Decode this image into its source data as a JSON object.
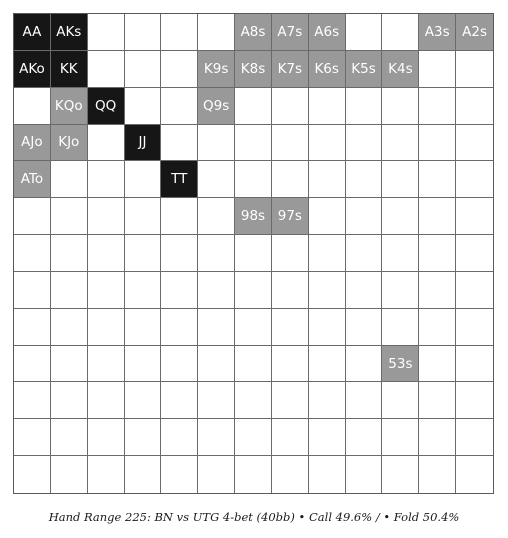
{
  "caption": "Hand Range 225: BN vs UTG 4-bet (40bb) • Call 49.6% / • Fold 50.4%",
  "colors": {
    "raise": "#161616",
    "call": "#999999",
    "fold": "#ffffff"
  },
  "grid": {
    "size": 13,
    "rows": [
      [
        {
          "t": "AA",
          "a": "raise"
        },
        {
          "t": "AKs",
          "a": "raise"
        },
        {
          "t": "",
          "a": "fold"
        },
        {
          "t": "",
          "a": "fold"
        },
        {
          "t": "",
          "a": "fold"
        },
        {
          "t": "",
          "a": "fold"
        },
        {
          "t": "A8s",
          "a": "call"
        },
        {
          "t": "A7s",
          "a": "call"
        },
        {
          "t": "A6s",
          "a": "call"
        },
        {
          "t": "",
          "a": "fold"
        },
        {
          "t": "",
          "a": "fold"
        },
        {
          "t": "A3s",
          "a": "call"
        },
        {
          "t": "A2s",
          "a": "call"
        }
      ],
      [
        {
          "t": "AKo",
          "a": "raise"
        },
        {
          "t": "KK",
          "a": "raise"
        },
        {
          "t": "",
          "a": "fold"
        },
        {
          "t": "",
          "a": "fold"
        },
        {
          "t": "",
          "a": "fold"
        },
        {
          "t": "K9s",
          "a": "call"
        },
        {
          "t": "K8s",
          "a": "call"
        },
        {
          "t": "K7s",
          "a": "call"
        },
        {
          "t": "K6s",
          "a": "call"
        },
        {
          "t": "K5s",
          "a": "call"
        },
        {
          "t": "K4s",
          "a": "call"
        },
        {
          "t": "",
          "a": "fold"
        },
        {
          "t": "",
          "a": "fold"
        }
      ],
      [
        {
          "t": "",
          "a": "fold"
        },
        {
          "t": "KQo",
          "a": "call"
        },
        {
          "t": "QQ",
          "a": "raise"
        },
        {
          "t": "",
          "a": "fold"
        },
        {
          "t": "",
          "a": "fold"
        },
        {
          "t": "Q9s",
          "a": "call"
        },
        {
          "t": "",
          "a": "fold"
        },
        {
          "t": "",
          "a": "fold"
        },
        {
          "t": "",
          "a": "fold"
        },
        {
          "t": "",
          "a": "fold"
        },
        {
          "t": "",
          "a": "fold"
        },
        {
          "t": "",
          "a": "fold"
        },
        {
          "t": "",
          "a": "fold"
        }
      ],
      [
        {
          "t": "AJo",
          "a": "call"
        },
        {
          "t": "KJo",
          "a": "call"
        },
        {
          "t": "",
          "a": "fold"
        },
        {
          "t": "JJ",
          "a": "raise"
        },
        {
          "t": "",
          "a": "fold"
        },
        {
          "t": "",
          "a": "fold"
        },
        {
          "t": "",
          "a": "fold"
        },
        {
          "t": "",
          "a": "fold"
        },
        {
          "t": "",
          "a": "fold"
        },
        {
          "t": "",
          "a": "fold"
        },
        {
          "t": "",
          "a": "fold"
        },
        {
          "t": "",
          "a": "fold"
        },
        {
          "t": "",
          "a": "fold"
        }
      ],
      [
        {
          "t": "ATo",
          "a": "call"
        },
        {
          "t": "",
          "a": "fold"
        },
        {
          "t": "",
          "a": "fold"
        },
        {
          "t": "",
          "a": "fold"
        },
        {
          "t": "TT",
          "a": "raise"
        },
        {
          "t": "",
          "a": "fold"
        },
        {
          "t": "",
          "a": "fold"
        },
        {
          "t": "",
          "a": "fold"
        },
        {
          "t": "",
          "a": "fold"
        },
        {
          "t": "",
          "a": "fold"
        },
        {
          "t": "",
          "a": "fold"
        },
        {
          "t": "",
          "a": "fold"
        },
        {
          "t": "",
          "a": "fold"
        }
      ],
      [
        {
          "t": "",
          "a": "fold"
        },
        {
          "t": "",
          "a": "fold"
        },
        {
          "t": "",
          "a": "fold"
        },
        {
          "t": "",
          "a": "fold"
        },
        {
          "t": "",
          "a": "fold"
        },
        {
          "t": "",
          "a": "fold"
        },
        {
          "t": "98s",
          "a": "call"
        },
        {
          "t": "97s",
          "a": "call"
        },
        {
          "t": "",
          "a": "fold"
        },
        {
          "t": "",
          "a": "fold"
        },
        {
          "t": "",
          "a": "fold"
        },
        {
          "t": "",
          "a": "fold"
        },
        {
          "t": "",
          "a": "fold"
        }
      ],
      [
        {
          "t": "",
          "a": "fold"
        },
        {
          "t": "",
          "a": "fold"
        },
        {
          "t": "",
          "a": "fold"
        },
        {
          "t": "",
          "a": "fold"
        },
        {
          "t": "",
          "a": "fold"
        },
        {
          "t": "",
          "a": "fold"
        },
        {
          "t": "",
          "a": "fold"
        },
        {
          "t": "",
          "a": "fold"
        },
        {
          "t": "",
          "a": "fold"
        },
        {
          "t": "",
          "a": "fold"
        },
        {
          "t": "",
          "a": "fold"
        },
        {
          "t": "",
          "a": "fold"
        },
        {
          "t": "",
          "a": "fold"
        }
      ],
      [
        {
          "t": "",
          "a": "fold"
        },
        {
          "t": "",
          "a": "fold"
        },
        {
          "t": "",
          "a": "fold"
        },
        {
          "t": "",
          "a": "fold"
        },
        {
          "t": "",
          "a": "fold"
        },
        {
          "t": "",
          "a": "fold"
        },
        {
          "t": "",
          "a": "fold"
        },
        {
          "t": "",
          "a": "fold"
        },
        {
          "t": "",
          "a": "fold"
        },
        {
          "t": "",
          "a": "fold"
        },
        {
          "t": "",
          "a": "fold"
        },
        {
          "t": "",
          "a": "fold"
        },
        {
          "t": "",
          "a": "fold"
        }
      ],
      [
        {
          "t": "",
          "a": "fold"
        },
        {
          "t": "",
          "a": "fold"
        },
        {
          "t": "",
          "a": "fold"
        },
        {
          "t": "",
          "a": "fold"
        },
        {
          "t": "",
          "a": "fold"
        },
        {
          "t": "",
          "a": "fold"
        },
        {
          "t": "",
          "a": "fold"
        },
        {
          "t": "",
          "a": "fold"
        },
        {
          "t": "",
          "a": "fold"
        },
        {
          "t": "",
          "a": "fold"
        },
        {
          "t": "",
          "a": "fold"
        },
        {
          "t": "",
          "a": "fold"
        },
        {
          "t": "",
          "a": "fold"
        }
      ],
      [
        {
          "t": "",
          "a": "fold"
        },
        {
          "t": "",
          "a": "fold"
        },
        {
          "t": "",
          "a": "fold"
        },
        {
          "t": "",
          "a": "fold"
        },
        {
          "t": "",
          "a": "fold"
        },
        {
          "t": "",
          "a": "fold"
        },
        {
          "t": "",
          "a": "fold"
        },
        {
          "t": "",
          "a": "fold"
        },
        {
          "t": "",
          "a": "fold"
        },
        {
          "t": "",
          "a": "fold"
        },
        {
          "t": "53s",
          "a": "call"
        },
        {
          "t": "",
          "a": "fold"
        },
        {
          "t": "",
          "a": "fold"
        }
      ],
      [
        {
          "t": "",
          "a": "fold"
        },
        {
          "t": "",
          "a": "fold"
        },
        {
          "t": "",
          "a": "fold"
        },
        {
          "t": "",
          "a": "fold"
        },
        {
          "t": "",
          "a": "fold"
        },
        {
          "t": "",
          "a": "fold"
        },
        {
          "t": "",
          "a": "fold"
        },
        {
          "t": "",
          "a": "fold"
        },
        {
          "t": "",
          "a": "fold"
        },
        {
          "t": "",
          "a": "fold"
        },
        {
          "t": "",
          "a": "fold"
        },
        {
          "t": "",
          "a": "fold"
        },
        {
          "t": "",
          "a": "fold"
        }
      ],
      [
        {
          "t": "",
          "a": "fold"
        },
        {
          "t": "",
          "a": "fold"
        },
        {
          "t": "",
          "a": "fold"
        },
        {
          "t": "",
          "a": "fold"
        },
        {
          "t": "",
          "a": "fold"
        },
        {
          "t": "",
          "a": "fold"
        },
        {
          "t": "",
          "a": "fold"
        },
        {
          "t": "",
          "a": "fold"
        },
        {
          "t": "",
          "a": "fold"
        },
        {
          "t": "",
          "a": "fold"
        },
        {
          "t": "",
          "a": "fold"
        },
        {
          "t": "",
          "a": "fold"
        },
        {
          "t": "",
          "a": "fold"
        }
      ],
      [
        {
          "t": "",
          "a": "fold"
        },
        {
          "t": "",
          "a": "fold"
        },
        {
          "t": "",
          "a": "fold"
        },
        {
          "t": "",
          "a": "fold"
        },
        {
          "t": "",
          "a": "fold"
        },
        {
          "t": "",
          "a": "fold"
        },
        {
          "t": "",
          "a": "fold"
        },
        {
          "t": "",
          "a": "fold"
        },
        {
          "t": "",
          "a": "fold"
        },
        {
          "t": "",
          "a": "fold"
        },
        {
          "t": "",
          "a": "fold"
        },
        {
          "t": "",
          "a": "fold"
        },
        {
          "t": "",
          "a": "fold"
        }
      ]
    ]
  }
}
